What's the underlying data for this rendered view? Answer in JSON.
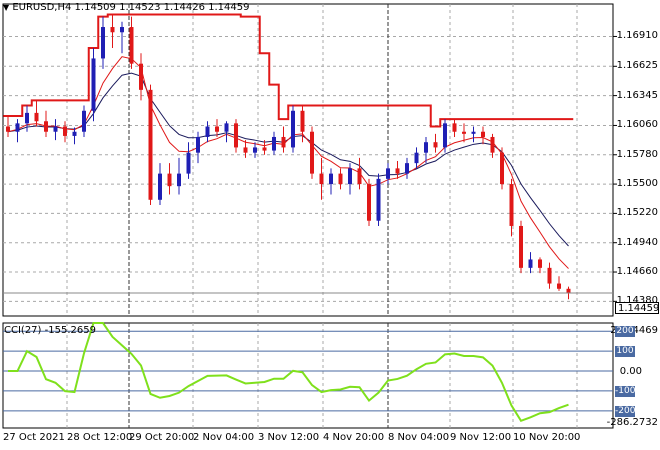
{
  "header": {
    "symbol": "EURUSD,H4",
    "ohlc": "1.14509 1.14523 1.14426 1.14459"
  },
  "price_axis": {
    "labels": [
      "1.16910",
      "1.16625",
      "1.16345",
      "1.16060",
      "1.15780",
      "1.15500",
      "1.15220",
      "1.14940",
      "1.14660",
      "1.14380"
    ],
    "current_price": "1.14459"
  },
  "cci": {
    "header": "CCI(27) -155.2659",
    "top_value": "241.4469",
    "bottom_value": "-286.2732",
    "levels": [
      "200",
      "100",
      "0.00",
      "-100",
      "-200"
    ]
  },
  "time_axis": {
    "labels": [
      "27 Oct 2021",
      "28 Oct 12:00",
      "29 Oct 20:00",
      "2 Nov 04:00",
      "3 Nov 12:00",
      "4 Nov 20:00",
      "8 Nov 04:00",
      "9 Nov 12:00",
      "10 Nov 20:00"
    ]
  },
  "colors": {
    "bull": "#1f1fb4",
    "bear": "#e01818",
    "envelope": "#e01818",
    "ma_fast": "#e01818",
    "ma_slow": "#1a1a5c",
    "cci_line": "#7fe01c",
    "grid": "#a8a8a8"
  },
  "chart_data": {
    "type": "candlestick",
    "series": [
      {
        "name": "EURUSD,H4",
        "ohlc": [
          [
            1.1605,
            1.1615,
            1.1595,
            1.16
          ],
          [
            1.16,
            1.1612,
            1.159,
            1.1608
          ],
          [
            1.1608,
            1.1625,
            1.16,
            1.1618
          ],
          [
            1.1618,
            1.163,
            1.1605,
            1.161
          ],
          [
            1.161,
            1.162,
            1.1595,
            1.16
          ],
          [
            1.16,
            1.1612,
            1.1592,
            1.1605
          ],
          [
            1.1605,
            1.161,
            1.159,
            1.1596
          ],
          [
            1.1596,
            1.1604,
            1.1588,
            1.16
          ],
          [
            1.16,
            1.1625,
            1.1595,
            1.162
          ],
          [
            1.162,
            1.168,
            1.161,
            1.167
          ],
          [
            1.167,
            1.171,
            1.166,
            1.17
          ],
          [
            1.17,
            1.1712,
            1.168,
            1.1695
          ],
          [
            1.1695,
            1.1705,
            1.1675,
            1.17
          ],
          [
            1.17,
            1.171,
            1.166,
            1.1665
          ],
          [
            1.1665,
            1.1675,
            1.163,
            1.164
          ],
          [
            1.164,
            1.1645,
            1.153,
            1.1535
          ],
          [
            1.1535,
            1.157,
            1.153,
            1.156
          ],
          [
            1.156,
            1.157,
            1.154,
            1.1548
          ],
          [
            1.1548,
            1.1575,
            1.154,
            1.156
          ],
          [
            1.156,
            1.159,
            1.1555,
            1.158
          ],
          [
            1.158,
            1.16,
            1.157,
            1.1595
          ],
          [
            1.1595,
            1.161,
            1.159,
            1.1605
          ],
          [
            1.1605,
            1.1612,
            1.1595,
            1.16
          ],
          [
            1.16,
            1.161,
            1.159,
            1.1608
          ],
          [
            1.1608,
            1.1612,
            1.158,
            1.1585
          ],
          [
            1.1585,
            1.1592,
            1.1575,
            1.158
          ],
          [
            1.158,
            1.159,
            1.1575,
            1.1585
          ],
          [
            1.1585,
            1.1592,
            1.1578,
            1.1582
          ],
          [
            1.1582,
            1.16,
            1.1578,
            1.1595
          ],
          [
            1.1595,
            1.1605,
            1.158,
            1.1585
          ],
          [
            1.1585,
            1.1625,
            1.158,
            1.162
          ],
          [
            1.162,
            1.1625,
            1.159,
            1.16
          ],
          [
            1.16,
            1.1605,
            1.1555,
            1.156
          ],
          [
            1.156,
            1.1575,
            1.1535,
            1.155
          ],
          [
            1.155,
            1.1565,
            1.154,
            1.156
          ],
          [
            1.156,
            1.1565,
            1.1545,
            1.155
          ],
          [
            1.155,
            1.157,
            1.154,
            1.1565
          ],
          [
            1.1565,
            1.1575,
            1.1545,
            1.155
          ],
          [
            1.155,
            1.1555,
            1.151,
            1.1515
          ],
          [
            1.1515,
            1.156,
            1.151,
            1.1555
          ],
          [
            1.1555,
            1.157,
            1.155,
            1.1565
          ],
          [
            1.1565,
            1.1572,
            1.1555,
            1.156
          ],
          [
            1.156,
            1.1575,
            1.1555,
            1.157
          ],
          [
            1.157,
            1.1585,
            1.1565,
            1.158
          ],
          [
            1.158,
            1.1595,
            1.157,
            1.159
          ],
          [
            1.159,
            1.1598,
            1.158,
            1.1585
          ],
          [
            1.1585,
            1.1612,
            1.158,
            1.1608
          ],
          [
            1.1608,
            1.1612,
            1.1595,
            1.16
          ],
          [
            1.16,
            1.1608,
            1.159,
            1.1598
          ],
          [
            1.1598,
            1.1605,
            1.159,
            1.16
          ],
          [
            1.16,
            1.1605,
            1.1588,
            1.1595
          ],
          [
            1.1595,
            1.1598,
            1.1575,
            1.158
          ],
          [
            1.158,
            1.1585,
            1.1545,
            1.155
          ],
          [
            1.155,
            1.1555,
            1.15,
            1.151
          ],
          [
            1.151,
            1.1515,
            1.1465,
            1.147
          ],
          [
            1.147,
            1.1485,
            1.1465,
            1.1478
          ],
          [
            1.1478,
            1.148,
            1.1465,
            1.147
          ],
          [
            1.147,
            1.1475,
            1.145,
            1.1455
          ],
          [
            1.1455,
            1.1462,
            1.1448,
            1.145
          ],
          [
            1.145,
            1.1452,
            1.144,
            1.1446
          ]
        ]
      }
    ],
    "ylim": [
      1.1424,
      1.1722
    ],
    "cci_ylim": [
      -286.2732,
      241.4469
    ]
  }
}
